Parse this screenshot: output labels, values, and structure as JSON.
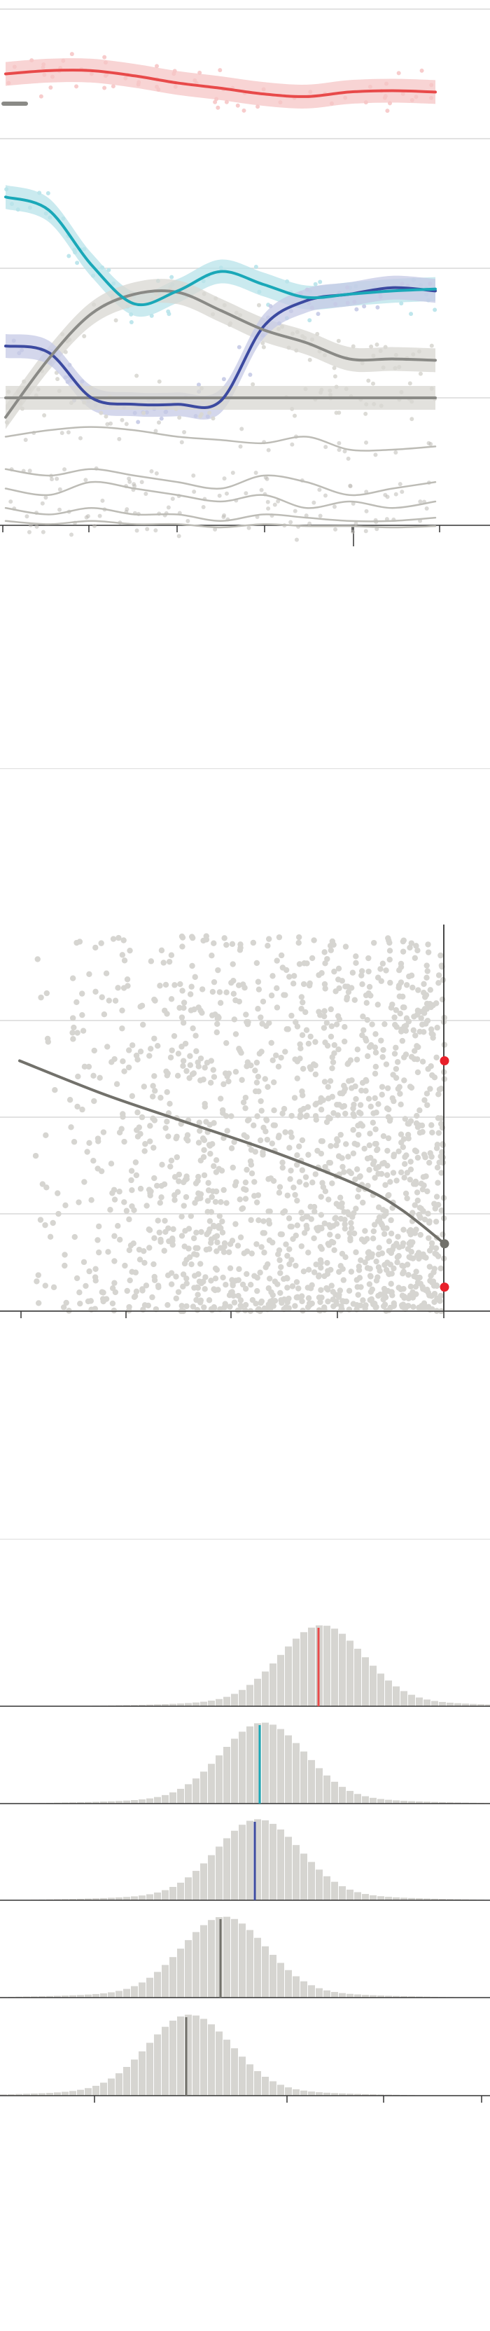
{
  "page": {
    "background": "#ffffff",
    "note": ""
  },
  "chart_data": [
    {
      "type": "line",
      "title": "",
      "xlabel": "",
      "ylabel": "",
      "grid": true,
      "legend": "top-left",
      "x": [
        0,
        1,
        2,
        3,
        4,
        5,
        6,
        7,
        8,
        9,
        10
      ],
      "ylim": [
        0,
        100
      ],
      "yticks": [
        0,
        20,
        40,
        60
      ],
      "series": [
        {
          "color": "#e84a4a",
          "band": "#f6c6c6",
          "values": [
            50,
            50.5,
            50.5,
            49.7,
            48.6,
            47.8,
            46.9,
            46.5,
            47.2,
            47.4,
            47.2
          ]
        },
        {
          "color": "#1aa8b8",
          "band": "#b8e3ea",
          "values": [
            31,
            29,
            20.5,
            14.5,
            16.5,
            19.5,
            17.5,
            15.5,
            16,
            16.5,
            16.8
          ]
        },
        {
          "color": "#8a8a86",
          "band": "#d8d7d2",
          "values": [
            -3,
            6,
            13,
            16,
            16.3,
            13.5,
            10.5,
            8.5,
            6,
            6,
            5.8
          ]
        },
        {
          "color": "#3c4aa0",
          "band": "#c5cae6",
          "values": [
            8,
            7,
            0,
            -1,
            -1,
            -0.5,
            11,
            15,
            16,
            17,
            16.5
          ]
        },
        {
          "color": "#8a8a86",
          "band": "#d8d7d2",
          "values": [
            0,
            0,
            0,
            0,
            0,
            0,
            0,
            0,
            0,
            0,
            0
          ]
        },
        {
          "color": "#bdbcb6",
          "values": [
            -6,
            -5,
            -4.5,
            -5,
            -6,
            -6.5,
            -7,
            -6,
            -8,
            -8,
            -7.5
          ]
        },
        {
          "color": "#bdbcb6",
          "values": [
            -11,
            -12,
            -11,
            -12,
            -13,
            -14,
            -12,
            -13,
            -15,
            -14,
            -13
          ]
        },
        {
          "color": "#bdbcb6",
          "values": [
            -14,
            -15,
            -13,
            -14,
            -15,
            -16,
            -15,
            -17,
            -16,
            -17,
            -16
          ]
        },
        {
          "color": "#bdbcb6",
          "values": [
            -17,
            -18,
            -17,
            -18,
            -18,
            -19,
            -18,
            -18.5,
            -19,
            -19,
            -18.5
          ]
        },
        {
          "color": "#bdbcb6",
          "values": [
            -19,
            -19.5,
            -19,
            -19.5,
            -19.5,
            -20,
            -19.5,
            -19.8,
            -19.8,
            -20,
            -19.8
          ]
        }
      ]
    },
    {
      "type": "scatter",
      "title": "",
      "xlabel": "",
      "ylabel": "",
      "grid": true,
      "xlim": [
        0,
        100
      ],
      "ylim": [
        0,
        100
      ],
      "trend": {
        "color": "#72716b",
        "x": [
          0,
          20,
          40,
          60,
          80,
          90,
          100
        ],
        "y": [
          52,
          45,
          39,
          33,
          26,
          21,
          14
        ]
      },
      "highlights": [
        {
          "x": 100,
          "y": 52,
          "color": "#e8202a"
        },
        {
          "x": 100,
          "y": 5,
          "color": "#e8202a"
        },
        {
          "x": 100,
          "y": 14,
          "color": "#72716b"
        }
      ]
    },
    {
      "type": "histogram",
      "title": "",
      "xlabel": "",
      "ylabel": "",
      "panels": [
        {
          "color": "#e84a4a",
          "mean": 65,
          "sd": 8.5
        },
        {
          "color": "#1aa8b8",
          "mean": 53,
          "sd": 8.5
        },
        {
          "color": "#3c4aa0",
          "mean": 52,
          "sd": 8.5
        },
        {
          "color": "#72716b",
          "mean": 45,
          "sd": 8.5
        },
        {
          "color": "#72716b",
          "mean": 38,
          "sd": 8.5
        }
      ],
      "xlim": [
        0,
        100
      ]
    }
  ]
}
